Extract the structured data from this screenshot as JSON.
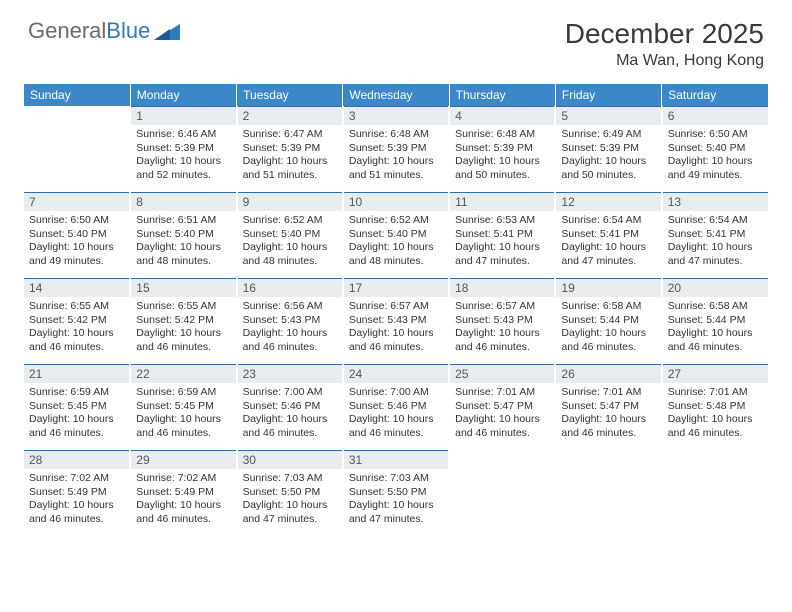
{
  "logo": {
    "word1": "General",
    "word2": "Blue"
  },
  "title": "December 2025",
  "subtitle": "Ma Wan, Hong Kong",
  "colors": {
    "header_bg": "#3b87c8",
    "header_text": "#ffffff",
    "daynum_bg": "#e9ecef",
    "day_border": "#2f6ea8",
    "body_text": "#333333"
  },
  "weekdays": [
    "Sunday",
    "Monday",
    "Tuesday",
    "Wednesday",
    "Thursday",
    "Friday",
    "Saturday"
  ],
  "weeks": [
    [
      {
        "n": "",
        "sr": "",
        "ss": "",
        "dl": ""
      },
      {
        "n": "1",
        "sr": "Sunrise: 6:46 AM",
        "ss": "Sunset: 5:39 PM",
        "dl": "Daylight: 10 hours and 52 minutes."
      },
      {
        "n": "2",
        "sr": "Sunrise: 6:47 AM",
        "ss": "Sunset: 5:39 PM",
        "dl": "Daylight: 10 hours and 51 minutes."
      },
      {
        "n": "3",
        "sr": "Sunrise: 6:48 AM",
        "ss": "Sunset: 5:39 PM",
        "dl": "Daylight: 10 hours and 51 minutes."
      },
      {
        "n": "4",
        "sr": "Sunrise: 6:48 AM",
        "ss": "Sunset: 5:39 PM",
        "dl": "Daylight: 10 hours and 50 minutes."
      },
      {
        "n": "5",
        "sr": "Sunrise: 6:49 AM",
        "ss": "Sunset: 5:39 PM",
        "dl": "Daylight: 10 hours and 50 minutes."
      },
      {
        "n": "6",
        "sr": "Sunrise: 6:50 AM",
        "ss": "Sunset: 5:40 PM",
        "dl": "Daylight: 10 hours and 49 minutes."
      }
    ],
    [
      {
        "n": "7",
        "sr": "Sunrise: 6:50 AM",
        "ss": "Sunset: 5:40 PM",
        "dl": "Daylight: 10 hours and 49 minutes."
      },
      {
        "n": "8",
        "sr": "Sunrise: 6:51 AM",
        "ss": "Sunset: 5:40 PM",
        "dl": "Daylight: 10 hours and 48 minutes."
      },
      {
        "n": "9",
        "sr": "Sunrise: 6:52 AM",
        "ss": "Sunset: 5:40 PM",
        "dl": "Daylight: 10 hours and 48 minutes."
      },
      {
        "n": "10",
        "sr": "Sunrise: 6:52 AM",
        "ss": "Sunset: 5:40 PM",
        "dl": "Daylight: 10 hours and 48 minutes."
      },
      {
        "n": "11",
        "sr": "Sunrise: 6:53 AM",
        "ss": "Sunset: 5:41 PM",
        "dl": "Daylight: 10 hours and 47 minutes."
      },
      {
        "n": "12",
        "sr": "Sunrise: 6:54 AM",
        "ss": "Sunset: 5:41 PM",
        "dl": "Daylight: 10 hours and 47 minutes."
      },
      {
        "n": "13",
        "sr": "Sunrise: 6:54 AM",
        "ss": "Sunset: 5:41 PM",
        "dl": "Daylight: 10 hours and 47 minutes."
      }
    ],
    [
      {
        "n": "14",
        "sr": "Sunrise: 6:55 AM",
        "ss": "Sunset: 5:42 PM",
        "dl": "Daylight: 10 hours and 46 minutes."
      },
      {
        "n": "15",
        "sr": "Sunrise: 6:55 AM",
        "ss": "Sunset: 5:42 PM",
        "dl": "Daylight: 10 hours and 46 minutes."
      },
      {
        "n": "16",
        "sr": "Sunrise: 6:56 AM",
        "ss": "Sunset: 5:43 PM",
        "dl": "Daylight: 10 hours and 46 minutes."
      },
      {
        "n": "17",
        "sr": "Sunrise: 6:57 AM",
        "ss": "Sunset: 5:43 PM",
        "dl": "Daylight: 10 hours and 46 minutes."
      },
      {
        "n": "18",
        "sr": "Sunrise: 6:57 AM",
        "ss": "Sunset: 5:43 PM",
        "dl": "Daylight: 10 hours and 46 minutes."
      },
      {
        "n": "19",
        "sr": "Sunrise: 6:58 AM",
        "ss": "Sunset: 5:44 PM",
        "dl": "Daylight: 10 hours and 46 minutes."
      },
      {
        "n": "20",
        "sr": "Sunrise: 6:58 AM",
        "ss": "Sunset: 5:44 PM",
        "dl": "Daylight: 10 hours and 46 minutes."
      }
    ],
    [
      {
        "n": "21",
        "sr": "Sunrise: 6:59 AM",
        "ss": "Sunset: 5:45 PM",
        "dl": "Daylight: 10 hours and 46 minutes."
      },
      {
        "n": "22",
        "sr": "Sunrise: 6:59 AM",
        "ss": "Sunset: 5:45 PM",
        "dl": "Daylight: 10 hours and 46 minutes."
      },
      {
        "n": "23",
        "sr": "Sunrise: 7:00 AM",
        "ss": "Sunset: 5:46 PM",
        "dl": "Daylight: 10 hours and 46 minutes."
      },
      {
        "n": "24",
        "sr": "Sunrise: 7:00 AM",
        "ss": "Sunset: 5:46 PM",
        "dl": "Daylight: 10 hours and 46 minutes."
      },
      {
        "n": "25",
        "sr": "Sunrise: 7:01 AM",
        "ss": "Sunset: 5:47 PM",
        "dl": "Daylight: 10 hours and 46 minutes."
      },
      {
        "n": "26",
        "sr": "Sunrise: 7:01 AM",
        "ss": "Sunset: 5:47 PM",
        "dl": "Daylight: 10 hours and 46 minutes."
      },
      {
        "n": "27",
        "sr": "Sunrise: 7:01 AM",
        "ss": "Sunset: 5:48 PM",
        "dl": "Daylight: 10 hours and 46 minutes."
      }
    ],
    [
      {
        "n": "28",
        "sr": "Sunrise: 7:02 AM",
        "ss": "Sunset: 5:49 PM",
        "dl": "Daylight: 10 hours and 46 minutes."
      },
      {
        "n": "29",
        "sr": "Sunrise: 7:02 AM",
        "ss": "Sunset: 5:49 PM",
        "dl": "Daylight: 10 hours and 46 minutes."
      },
      {
        "n": "30",
        "sr": "Sunrise: 7:03 AM",
        "ss": "Sunset: 5:50 PM",
        "dl": "Daylight: 10 hours and 47 minutes."
      },
      {
        "n": "31",
        "sr": "Sunrise: 7:03 AM",
        "ss": "Sunset: 5:50 PM",
        "dl": "Daylight: 10 hours and 47 minutes."
      },
      {
        "n": "",
        "sr": "",
        "ss": "",
        "dl": ""
      },
      {
        "n": "",
        "sr": "",
        "ss": "",
        "dl": ""
      },
      {
        "n": "",
        "sr": "",
        "ss": "",
        "dl": ""
      }
    ]
  ]
}
